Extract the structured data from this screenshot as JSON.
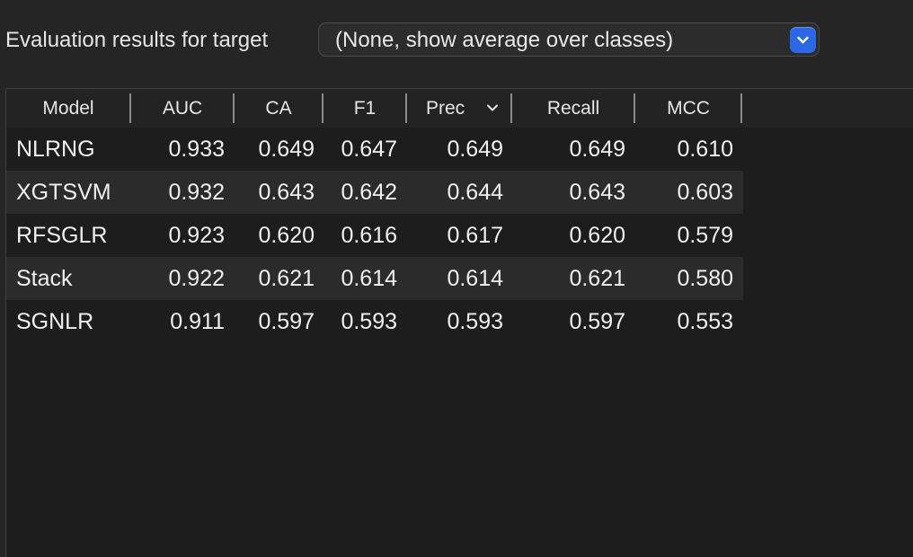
{
  "target": {
    "label": "Evaluation results for target",
    "selected": "(None, show average over classes)"
  },
  "table": {
    "columns": [
      {
        "key": "model",
        "label": "Model"
      },
      {
        "key": "auc",
        "label": "AUC"
      },
      {
        "key": "ca",
        "label": "CA"
      },
      {
        "key": "f1",
        "label": "F1"
      },
      {
        "key": "prec",
        "label": "Prec",
        "sorted": "descending"
      },
      {
        "key": "recall",
        "label": "Recall"
      },
      {
        "key": "mcc",
        "label": "MCC"
      }
    ],
    "rows": [
      {
        "model": "NLRNG",
        "auc": "0.933",
        "ca": "0.649",
        "f1": "0.647",
        "prec": "0.649",
        "recall": "0.649",
        "mcc": "0.610"
      },
      {
        "model": "XGTSVM",
        "auc": "0.932",
        "ca": "0.643",
        "f1": "0.642",
        "prec": "0.644",
        "recall": "0.643",
        "mcc": "0.603"
      },
      {
        "model": "RFSGLR",
        "auc": "0.923",
        "ca": "0.620",
        "f1": "0.616",
        "prec": "0.617",
        "recall": "0.620",
        "mcc": "0.579"
      },
      {
        "model": "Stack",
        "auc": "0.922",
        "ca": "0.621",
        "f1": "0.614",
        "prec": "0.614",
        "recall": "0.621",
        "mcc": "0.580"
      },
      {
        "model": "SGNLR",
        "auc": "0.911",
        "ca": "0.597",
        "f1": "0.593",
        "prec": "0.593",
        "recall": "0.597",
        "mcc": "0.553"
      }
    ]
  },
  "colors": {
    "accent": "#2c68e6",
    "background": "#1d1d1d",
    "row_alt": "#2b2b2b"
  },
  "icons": {
    "select_arrow": "chevron-down-icon",
    "sort_indicator": "chevron-down-icon"
  }
}
